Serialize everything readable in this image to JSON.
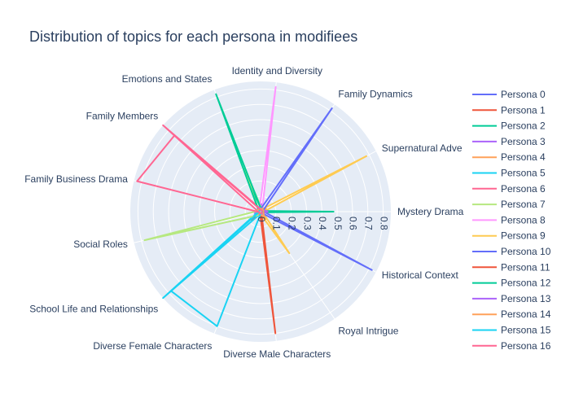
{
  "chart_data": {
    "type": "polar-line",
    "title": "Distribution of topics for each persona in modifiees",
    "categories": [
      "Mystery Drama",
      "Supernatural Adve",
      "Family Dynamics",
      "Identity and Diversity",
      "Emotions and States",
      "Family Members",
      "Family Business Drama",
      "Social Roles",
      "School Life and Relationships",
      "Diverse Female Characters",
      "Diverse Male Characters",
      "Royal Intrigue",
      "Historical Context"
    ],
    "radial_ticks": [
      "0",
      "0.1",
      "0.2",
      "0.3",
      "0.4",
      "0.5",
      "0.6",
      "0.7",
      "0.8"
    ],
    "radial_range": [
      0,
      0.85
    ],
    "legend_position": "right",
    "series": [
      {
        "name": "Persona 0",
        "color": "#636efa",
        "values": [
          0.01,
          0.02,
          0.02,
          0.02,
          0.01,
          0.01,
          0.01,
          0.01,
          0.02,
          0.03,
          0.02,
          0.02,
          0.01
        ]
      },
      {
        "name": "Persona 1",
        "color": "#ef553b",
        "values": [
          0.01,
          0.01,
          0.02,
          0.01,
          0.01,
          0.02,
          0.01,
          0.02,
          0.08,
          0.02,
          0.02,
          0.01,
          0.01
        ]
      },
      {
        "name": "Persona 2",
        "color": "#00cc96",
        "values": [
          0.02,
          0.02,
          0.01,
          0.02,
          0.18,
          0.02,
          0.02,
          0.02,
          0.02,
          0.02,
          0.01,
          0.01,
          0.02
        ]
      },
      {
        "name": "Persona 3",
        "color": "#ab63fa",
        "values": [
          0.06,
          0.02,
          0.02,
          0.05,
          0.02,
          0.02,
          0.02,
          0.04,
          0.03,
          0.02,
          0.02,
          0.02,
          0.02
        ]
      },
      {
        "name": "Persona 4",
        "color": "#ffa15a",
        "values": [
          0.02,
          0.04,
          0.03,
          0.03,
          0.02,
          0.02,
          0.02,
          0.02,
          0.02,
          0.02,
          0.03,
          0.06,
          0.02
        ]
      },
      {
        "name": "Persona 5",
        "color": "#19d3f3",
        "values": [
          0.01,
          0.01,
          0.01,
          0.01,
          0.01,
          0.01,
          0.01,
          0.02,
          0.85,
          0.02,
          0.01,
          0.01,
          0.01
        ]
      },
      {
        "name": "Persona 6",
        "color": "#ff6692",
        "values": [
          0.01,
          0.01,
          0.01,
          0.01,
          0.03,
          0.85,
          0.02,
          0.01,
          0.01,
          0.01,
          0.01,
          0.01,
          0.01
        ]
      },
      {
        "name": "Persona 7",
        "color": "#b6e880",
        "values": [
          0.02,
          0.02,
          0.02,
          0.03,
          0.3,
          0.02,
          0.02,
          0.78,
          0.04,
          0.02,
          0.02,
          0.02,
          0.02
        ]
      },
      {
        "name": "Persona 8",
        "color": "#ff97ff",
        "values": [
          0.01,
          0.01,
          0.02,
          0.82,
          0.02,
          0.01,
          0.01,
          0.02,
          0.01,
          0.01,
          0.01,
          0.01,
          0.01
        ]
      },
      {
        "name": "Persona 9",
        "color": "#fecb52",
        "values": [
          0.02,
          0.78,
          0.02,
          0.02,
          0.02,
          0.01,
          0.01,
          0.02,
          0.01,
          0.02,
          0.02,
          0.33,
          0.02
        ]
      },
      {
        "name": "Persona 10",
        "color": "#636efa",
        "values": [
          0.02,
          0.02,
          0.82,
          0.02,
          0.01,
          0.01,
          0.01,
          0.01,
          0.01,
          0.01,
          0.01,
          0.01,
          0.82
        ]
      },
      {
        "name": "Persona 11",
        "color": "#ef553b",
        "values": [
          0.01,
          0.01,
          0.01,
          0.01,
          0.01,
          0.01,
          0.01,
          0.01,
          0.01,
          0.01,
          0.8,
          0.01,
          0.01
        ]
      },
      {
        "name": "Persona 12",
        "color": "#00cc96",
        "values": [
          0.48,
          0.01,
          0.01,
          0.02,
          0.82,
          0.02,
          0.01,
          0.02,
          0.02,
          0.02,
          0.02,
          0.01,
          0.01
        ]
      },
      {
        "name": "Persona 13",
        "color": "#ab63fa",
        "values": [
          0.05,
          0.02,
          0.02,
          0.02,
          0.03,
          0.02,
          0.02,
          0.02,
          0.02,
          0.02,
          0.02,
          0.02,
          0.02
        ]
      },
      {
        "name": "Persona 14",
        "color": "#ffa15a",
        "values": [
          0.02,
          0.02,
          0.02,
          0.02,
          0.02,
          0.02,
          0.02,
          0.02,
          0.02,
          0.02,
          0.02,
          0.05,
          0.02
        ]
      },
      {
        "name": "Persona 15",
        "color": "#19d3f3",
        "values": [
          0.01,
          0.01,
          0.01,
          0.01,
          0.01,
          0.01,
          0.01,
          0.01,
          0.78,
          0.8,
          0.01,
          0.01,
          0.01
        ]
      },
      {
        "name": "Persona 16",
        "color": "#ff6692",
        "values": [
          0.01,
          0.01,
          0.01,
          0.01,
          0.02,
          0.75,
          0.83,
          0.01,
          0.01,
          0.01,
          0.01,
          0.01,
          0.01
        ]
      }
    ]
  }
}
